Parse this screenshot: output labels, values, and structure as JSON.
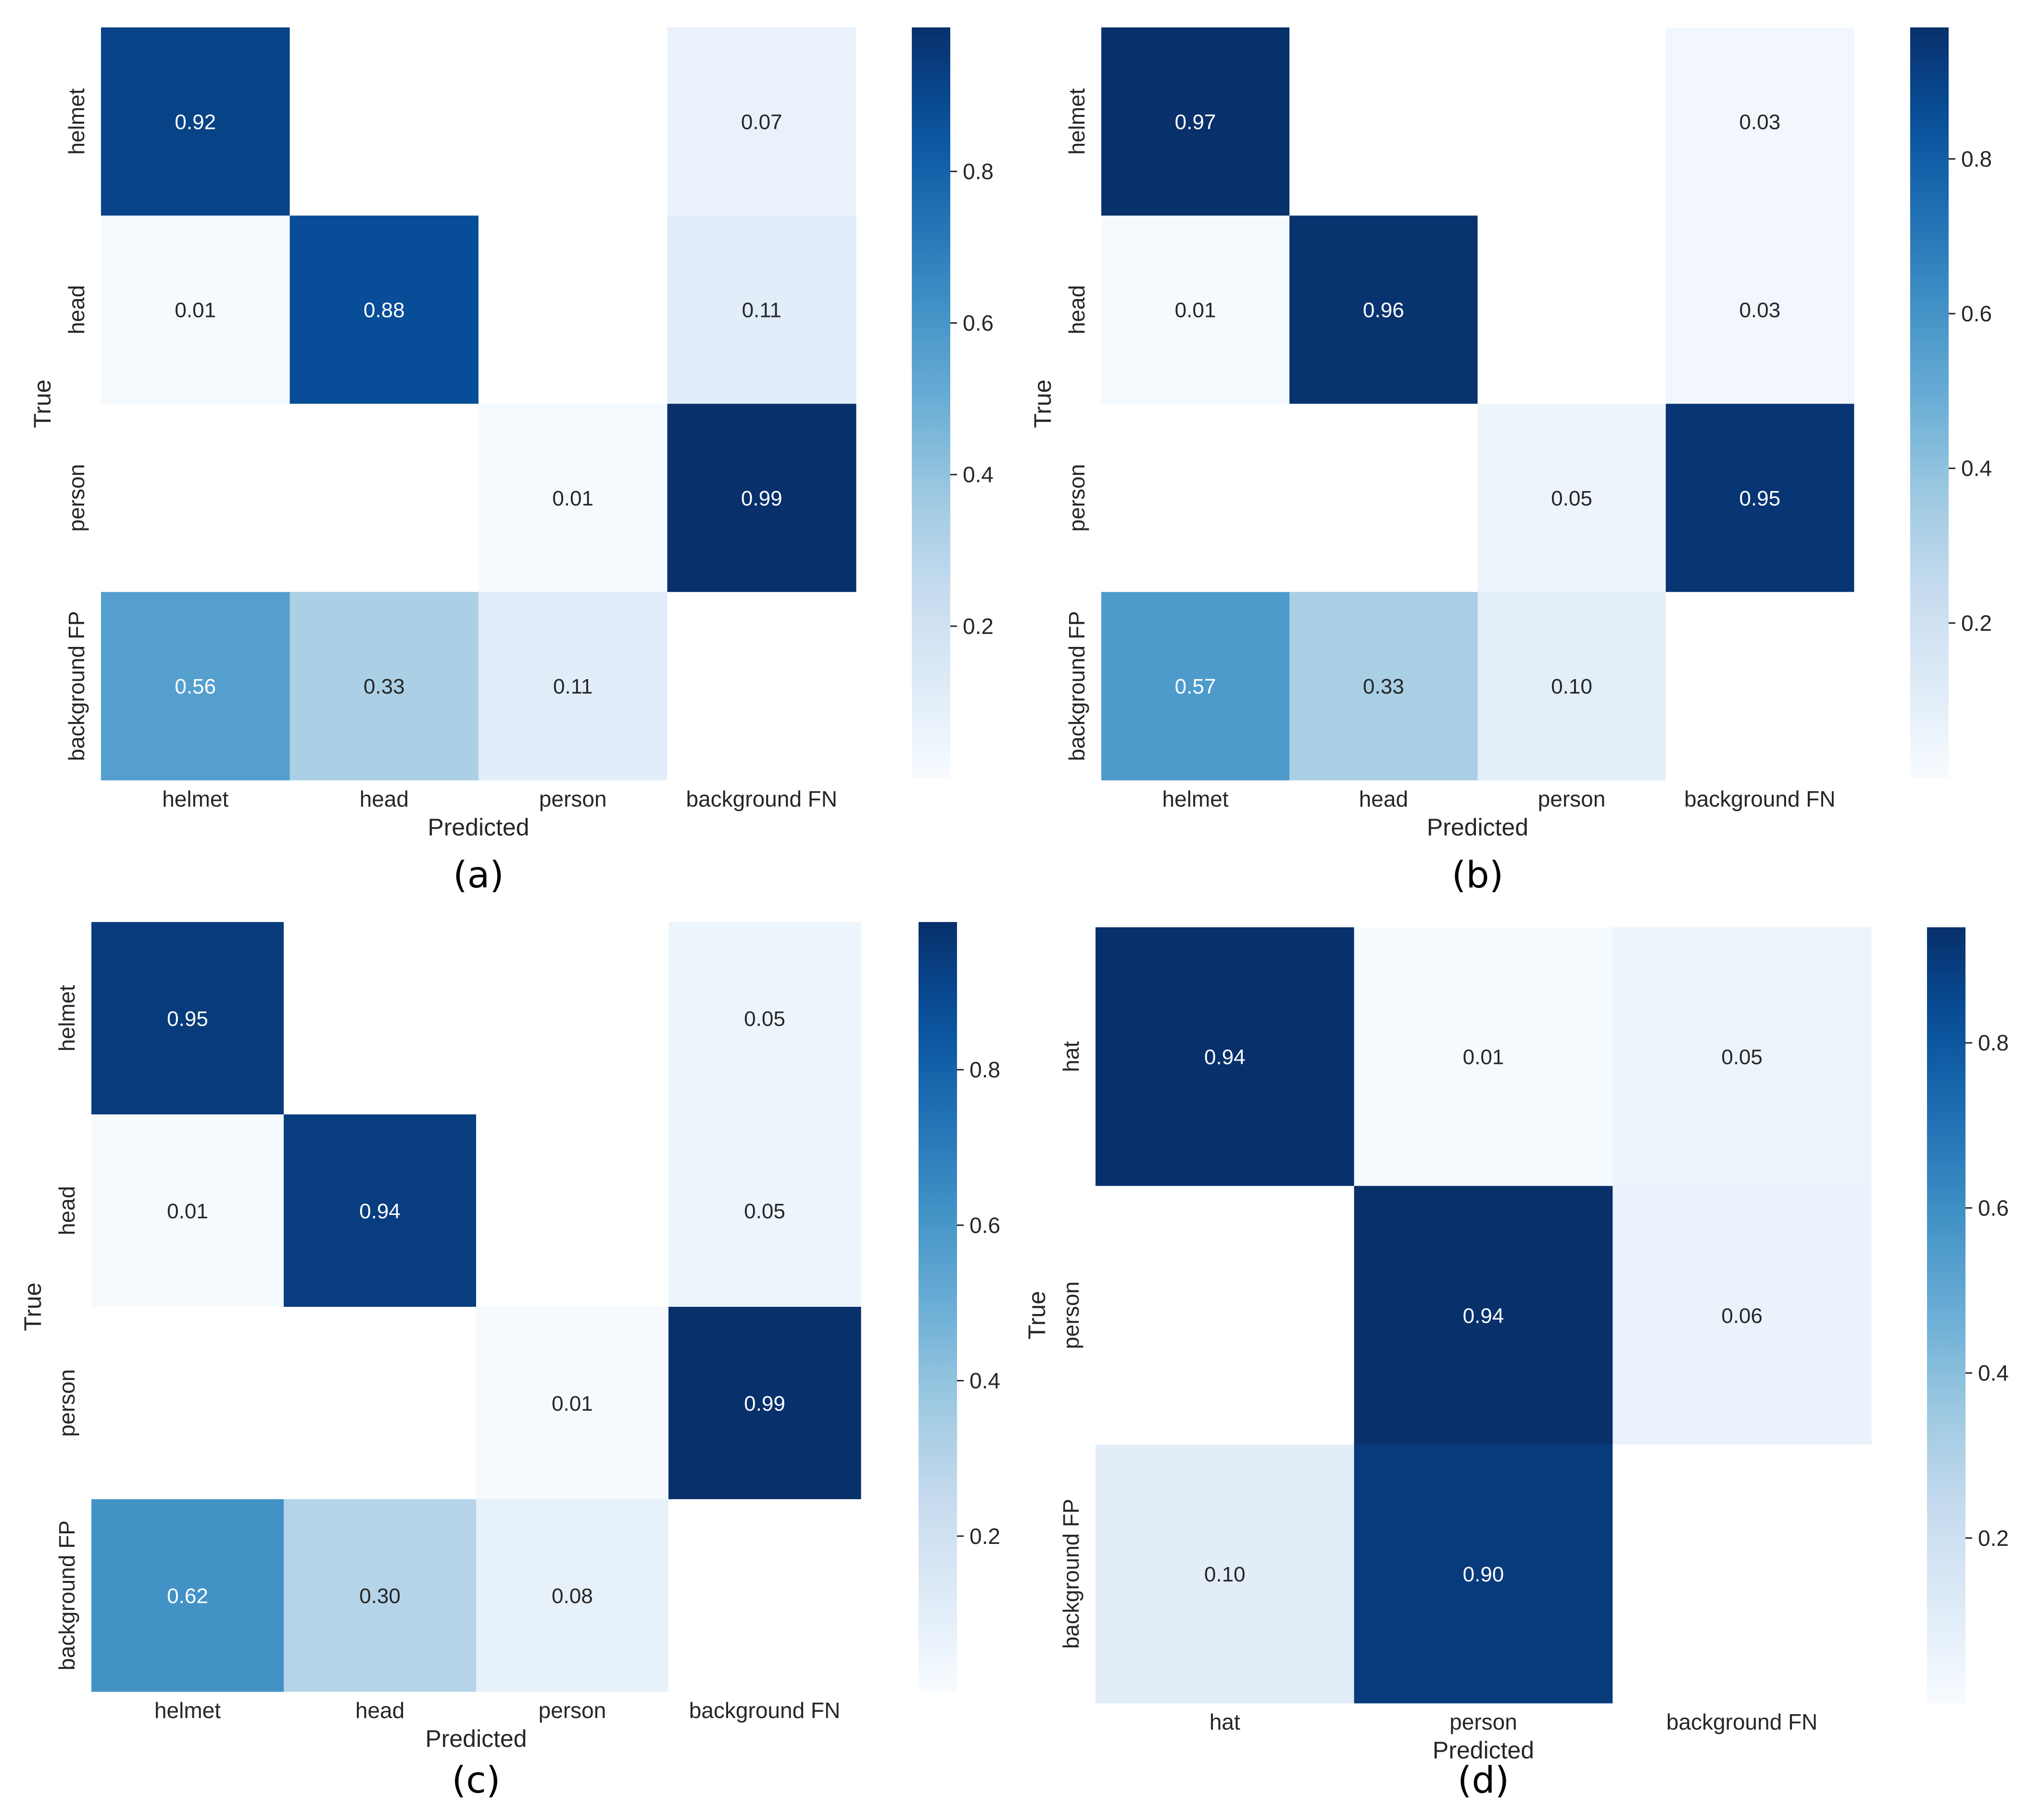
{
  "colormap": {
    "name": "Blues",
    "stops": [
      "#f7fbff",
      "#deebf7",
      "#c6dbef",
      "#9ecae1",
      "#6baed6",
      "#4292c6",
      "#2171b5",
      "#08519c",
      "#08306b"
    ],
    "empty_cell": "#ffffff",
    "light_text": "#ffffff",
    "dark_text": "#262626"
  },
  "chart_data": [
    {
      "type": "heatmap",
      "id": "a",
      "caption": "(a)",
      "xlabel": "Predicted",
      "ylabel": "True",
      "rows": [
        "helmet",
        "head",
        "person",
        "background FP"
      ],
      "cols": [
        "helmet",
        "head",
        "person",
        "background FN"
      ],
      "values": [
        [
          0.92,
          null,
          null,
          0.07
        ],
        [
          0.01,
          0.88,
          null,
          0.11
        ],
        [
          null,
          null,
          0.01,
          0.99
        ],
        [
          0.56,
          0.33,
          0.11,
          null
        ]
      ],
      "labels": [
        [
          "0.92",
          "",
          "",
          "0.07"
        ],
        [
          "0.01",
          "0.88",
          "",
          "0.11"
        ],
        [
          "",
          "",
          "0.01",
          "0.99"
        ],
        [
          "0.56",
          "0.33",
          "0.11",
          ""
        ]
      ],
      "color_range": [
        0,
        0.99
      ],
      "colorbar_ticks": [
        0.2,
        0.4,
        0.6,
        0.8
      ],
      "colorbar_tick_labels": [
        "0.2",
        "0.4",
        "0.6",
        "0.8"
      ]
    },
    {
      "type": "heatmap",
      "id": "b",
      "caption": "(b)",
      "xlabel": "Predicted",
      "ylabel": "True",
      "rows": [
        "helmet",
        "head",
        "person",
        "background FP"
      ],
      "cols": [
        "helmet",
        "head",
        "person",
        "background FN"
      ],
      "values": [
        [
          0.97,
          null,
          null,
          0.03
        ],
        [
          0.01,
          0.96,
          null,
          0.03
        ],
        [
          null,
          null,
          0.05,
          0.95
        ],
        [
          0.57,
          0.33,
          0.1,
          null
        ]
      ],
      "labels": [
        [
          "0.97",
          "",
          "",
          "0.03"
        ],
        [
          "0.01",
          "0.96",
          "",
          "0.03"
        ],
        [
          "",
          "",
          "0.05",
          "0.95"
        ],
        [
          "0.57",
          "0.33",
          "0.10",
          ""
        ]
      ],
      "color_range": [
        0,
        0.97
      ],
      "colorbar_ticks": [
        0.2,
        0.4,
        0.6,
        0.8
      ],
      "colorbar_tick_labels": [
        "0.2",
        "0.4",
        "0.6",
        "0.8"
      ]
    },
    {
      "type": "heatmap",
      "id": "c",
      "caption": "(c)",
      "xlabel": "Predicted",
      "ylabel": "True",
      "rows": [
        "helmet",
        "head",
        "person",
        "background FP"
      ],
      "cols": [
        "helmet",
        "head",
        "person",
        "background FN"
      ],
      "values": [
        [
          0.95,
          null,
          null,
          0.05
        ],
        [
          0.01,
          0.94,
          null,
          0.05
        ],
        [
          null,
          null,
          0.01,
          0.99
        ],
        [
          0.62,
          0.3,
          0.08,
          null
        ]
      ],
      "labels": [
        [
          "0.95",
          "",
          "",
          "0.05"
        ],
        [
          "0.01",
          "0.94",
          "",
          "0.05"
        ],
        [
          "",
          "",
          "0.01",
          "0.99"
        ],
        [
          "0.62",
          "0.30",
          "0.08",
          ""
        ]
      ],
      "color_range": [
        0,
        0.99
      ],
      "colorbar_ticks": [
        0.2,
        0.4,
        0.6,
        0.8
      ],
      "colorbar_tick_labels": [
        "0.2",
        "0.4",
        "0.6",
        "0.8"
      ]
    },
    {
      "type": "heatmap",
      "id": "d",
      "caption": "(d)",
      "xlabel": "Predicted",
      "ylabel": "True",
      "rows": [
        "hat",
        "person",
        "background FP"
      ],
      "cols": [
        "hat",
        "person",
        "background FN"
      ],
      "values": [
        [
          0.94,
          0.01,
          0.05
        ],
        [
          null,
          0.94,
          0.06
        ],
        [
          0.1,
          0.9,
          null
        ]
      ],
      "labels": [
        [
          "0.94",
          "0.01",
          "0.05"
        ],
        [
          "",
          "0.94",
          "0.06"
        ],
        [
          "0.10",
          "0.90",
          ""
        ]
      ],
      "color_range": [
        0,
        0.94
      ],
      "colorbar_ticks": [
        0.2,
        0.4,
        0.6,
        0.8
      ],
      "colorbar_tick_labels": [
        "0.2",
        "0.4",
        "0.6",
        "0.8"
      ]
    }
  ]
}
